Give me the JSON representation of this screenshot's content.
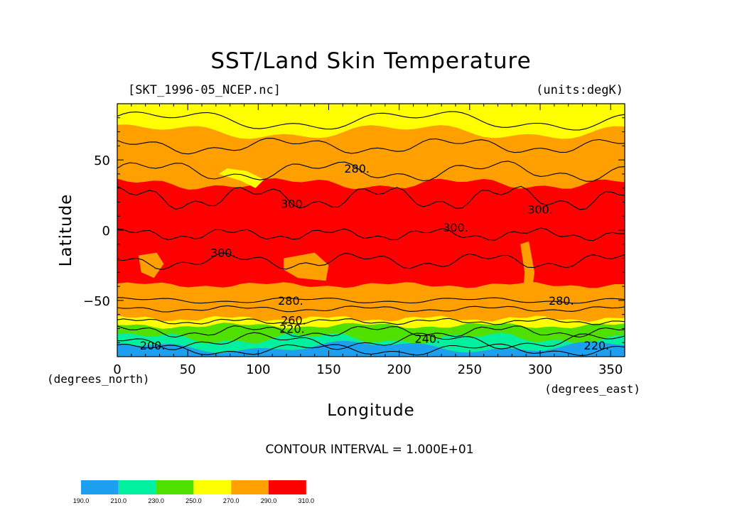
{
  "title": "SST/Land Skin Temperature",
  "file_label": "[SKT_1996-05_NCEP.nc]",
  "units_label": "(units:degK)",
  "x_axis_label": "Longitude",
  "y_axis_label": "Latitude",
  "x_units": "(degrees_east)",
  "y_units": "(degrees_north)",
  "contour_interval": "CONTOUR INTERVAL = 1.000E+01",
  "colors": {
    "c190_210": "#1ea0f0",
    "c210_230": "#00f0a0",
    "c230_250": "#50e000",
    "c250_270": "#ffff00",
    "c270_290": "#ffa000",
    "c290_310": "#ff0000",
    "contour": "#000000"
  },
  "chart_data": {
    "type": "heatmap",
    "variable": "SST/Land Skin Temperature",
    "units": "degK",
    "xlim": [
      0,
      360
    ],
    "ylim": [
      -90,
      90
    ],
    "x_ticks": [
      0,
      50,
      100,
      150,
      200,
      250,
      300,
      350
    ],
    "y_ticks": [
      -50,
      0,
      50
    ],
    "contour_interval": 10,
    "color_levels": [
      190.0,
      210.0,
      230.0,
      250.0,
      270.0,
      290.0,
      310.0
    ],
    "colorbar_labels": [
      "190.0",
      "210.0",
      "230.0",
      "250.0",
      "270.0",
      "290.0",
      "310.0"
    ],
    "contour_labels": [
      {
        "text": "280.",
        "lon": 170,
        "lat": 44
      },
      {
        "text": "300.",
        "lon": 125,
        "lat": 19
      },
      {
        "text": "300.",
        "lon": 300,
        "lat": 15
      },
      {
        "text": "300.",
        "lon": 240,
        "lat": 2
      },
      {
        "text": "300.",
        "lon": 75,
        "lat": -16
      },
      {
        "text": "280.",
        "lon": 123,
        "lat": -50
      },
      {
        "text": "280.",
        "lon": 315,
        "lat": -50
      },
      {
        "text": "260.",
        "lon": 125,
        "lat": -64
      },
      {
        "text": "220.",
        "lon": 124,
        "lat": -70
      },
      {
        "text": "200.",
        "lon": 25,
        "lat": -82
      },
      {
        "text": "240.",
        "lon": 220,
        "lat": -77
      },
      {
        "text": "220.",
        "lon": 340,
        "lat": -82
      }
    ],
    "bands_lat_approx": [
      {
        "range": "290-310",
        "lat": [
          -40,
          34
        ]
      },
      {
        "range": "270-290",
        "lat": [
          -64,
          -40
        ]
      },
      {
        "range": "270-290",
        "lat": [
          34,
          68
        ]
      },
      {
        "range": "250-270",
        "lat": [
          68,
          90
        ]
      },
      {
        "range": "250-270",
        "lat": [
          -68,
          -64
        ]
      },
      {
        "range": "230-250",
        "lat": [
          -78,
          -68
        ]
      },
      {
        "range": "210-230",
        "lat": [
          -84,
          -78
        ]
      },
      {
        "range": "190-210",
        "lat": [
          -90,
          -84
        ]
      }
    ]
  }
}
